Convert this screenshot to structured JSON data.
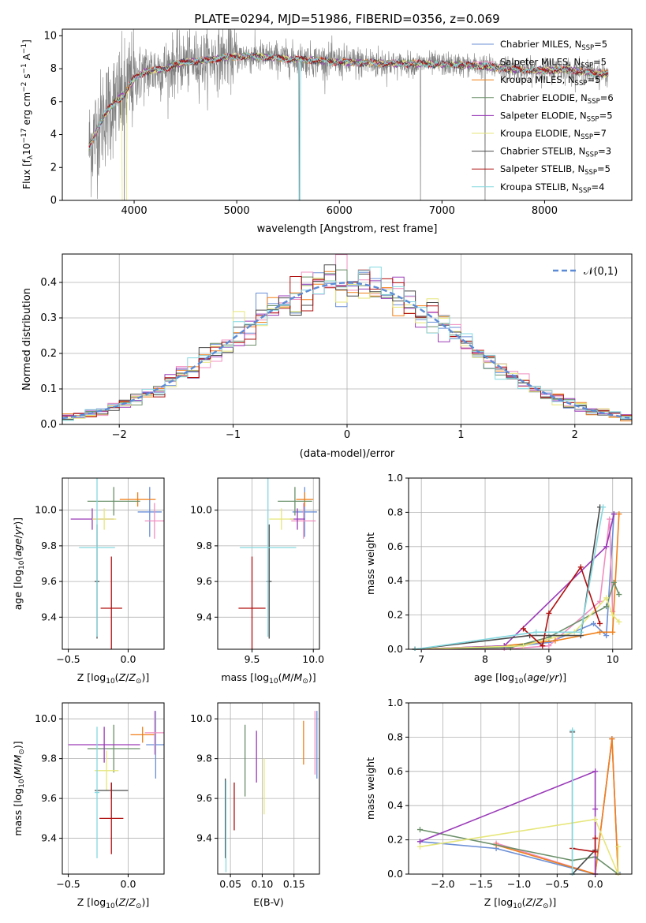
{
  "title": "PLATE=0294, MJD=51986, FIBERID=0356, z=0.069",
  "series_colors": [
    "#6b8fd6",
    "#f08fc0",
    "#f07f17",
    "#6a8f69",
    "#9a3ab8",
    "#e6e67a",
    "#4a4a4a",
    "#b01010",
    "#84d8e0"
  ],
  "chart_data": [
    {
      "id": "spectrum",
      "type": "line",
      "xlabel": "wavelength [Angstrom, rest frame]",
      "ylabel": "Flux [f_λ 10^-17 erg cm^-2 s^-1 A^-1]",
      "xlim": [
        3300,
        8850
      ],
      "ylim": [
        0,
        10.4
      ],
      "xticks": [
        "4000",
        "5000",
        "6000",
        "7000",
        "8000"
      ],
      "yticks": [
        "0",
        "2",
        "4",
        "6",
        "8",
        "10"
      ],
      "legend_position": "right",
      "legend": [
        {
          "model": "Chabrier MILES, N",
          "sub": "SSP",
          "n": "=5"
        },
        {
          "model": "Salpeter MILES, N",
          "sub": "SSP",
          "n": "=5"
        },
        {
          "model": "Kroupa MILES, N",
          "sub": "SSP",
          "n": "=5"
        },
        {
          "model": "Chabrier ELODIE, N",
          "sub": "SSP",
          "n": "=6"
        },
        {
          "model": "Salpeter ELODIE, N",
          "sub": "SSP",
          "n": "=5"
        },
        {
          "model": "Kroupa ELODIE, N",
          "sub": "SSP",
          "n": "=7"
        },
        {
          "model": "Chabrier STELIB, N",
          "sub": "SSP",
          "n": "=3"
        },
        {
          "model": "Salpeter STELIB, N",
          "sub": "SSP",
          "n": "=5"
        },
        {
          "model": "Kroupa STELIB, N",
          "sub": "SSP",
          "n": "=4"
        }
      ],
      "model_knots_x": [
        3560,
        3620,
        3700,
        3800,
        3900,
        3950,
        4000,
        4100,
        4200,
        4300,
        4400,
        4500,
        4700,
        4900,
        5100,
        5300,
        5500,
        5800,
        6000,
        6300,
        6600,
        6900,
        7100,
        7300,
        7500,
        7800,
        8000,
        8200,
        8400,
        8600
      ],
      "model_knots_y": [
        3.2,
        4.0,
        5.1,
        5.9,
        6.4,
        6.9,
        7.4,
        7.8,
        7.9,
        8.0,
        8.25,
        8.4,
        8.5,
        8.7,
        8.75,
        8.7,
        8.6,
        8.5,
        8.4,
        8.35,
        8.3,
        8.3,
        8.25,
        8.2,
        8.1,
        7.9,
        7.9,
        7.95,
        7.8,
        7.7
      ],
      "data_range_x": [
        3560,
        8620
      ],
      "spikes": [
        {
          "x": 3905,
          "y": 0
        },
        {
          "x": 5610,
          "y": 0
        },
        {
          "x": 6790,
          "y": 0
        },
        {
          "x": 7420,
          "y": 0
        }
      ]
    },
    {
      "id": "residuals",
      "type": "histogram",
      "xlabel": "(data-model)/error",
      "ylabel": "Normed distribution",
      "xlim": [
        -2.5,
        2.5
      ],
      "ylim": [
        0,
        0.48
      ],
      "xticks": [
        "−2",
        "−1",
        "0",
        "1",
        "2"
      ],
      "yticks": [
        "0.0",
        "0.1",
        "0.2",
        "0.3",
        "0.4"
      ],
      "bin_width": 0.1,
      "legend": "𝒩(0,1)",
      "legend_position": "upper right",
      "reference": {
        "name": "N(0,1)",
        "mean": 0,
        "sigma": 1
      }
    },
    {
      "id": "age_vs_Z",
      "type": "errorbar",
      "xlabel_main": "Z [log",
      "xlabel_sub": "10",
      "xlabel_rest": "(Z/Z",
      "xlabel_sun": "⊙",
      "xlabel_end": ")]",
      "ylabel": "age  [log10(age/yr)]",
      "xlim": [
        -0.55,
        0.3
      ],
      "ylim": [
        9.22,
        10.18
      ],
      "xticks": [
        {
          "v": -0.5,
          "t": "−0.5"
        },
        {
          "v": 0.0,
          "t": "0.0"
        }
      ],
      "yticks": [
        {
          "v": 9.4,
          "t": "9.4"
        },
        {
          "v": 9.6,
          "t": "9.6"
        },
        {
          "v": 9.8,
          "t": "9.8"
        },
        {
          "v": 10.0,
          "t": "10.0"
        }
      ],
      "points": [
        {
          "x": 0.18,
          "y": 9.99,
          "xe": 0.1,
          "ye": 0.14
        },
        {
          "x": 0.22,
          "y": 9.94,
          "xe": 0.08,
          "ye": 0.1
        },
        {
          "x": 0.08,
          "y": 10.06,
          "xe": 0.15,
          "ye": 0.04
        },
        {
          "x": -0.12,
          "y": 10.05,
          "xe": 0.22,
          "ye": 0.08
        },
        {
          "x": -0.3,
          "y": 9.95,
          "xe": 0.18,
          "ye": 0.06
        },
        {
          "x": -0.2,
          "y": 9.95,
          "xe": 0.1,
          "ye": 0.06
        },
        {
          "x": -0.26,
          "y": 9.6,
          "xe": 0.02,
          "ye": 0.32
        },
        {
          "x": -0.14,
          "y": 9.45,
          "xe": 0.09,
          "ye": 0.29
        },
        {
          "x": -0.26,
          "y": 9.79,
          "xe": 0.15,
          "ye": 0.5
        }
      ]
    },
    {
      "id": "age_vs_mass",
      "type": "errorbar",
      "xlabel": "mass [log10(M/M⊙)]",
      "xlim": [
        9.22,
        10.05
      ],
      "ylim": [
        9.22,
        10.18
      ],
      "xticks": [
        {
          "v": 9.5,
          "t": "9.5"
        },
        {
          "v": 10.0,
          "t": "10.0"
        }
      ],
      "yticks": [
        {
          "v": 9.4,
          "t": "9.4"
        },
        {
          "v": 9.6,
          "t": "9.6"
        },
        {
          "v": 9.8,
          "t": "9.8"
        },
        {
          "v": 10.0,
          "t": "10.0"
        }
      ],
      "points": [
        {
          "x": 9.93,
          "y": 9.99,
          "xe": 0.1,
          "ye": 0.14
        },
        {
          "x": 9.92,
          "y": 9.94,
          "xe": 0.1,
          "ye": 0.1
        },
        {
          "x": 9.93,
          "y": 10.06,
          "xe": 0.07,
          "ye": 0.04
        },
        {
          "x": 9.85,
          "y": 10.05,
          "xe": 0.14,
          "ye": 0.08
        },
        {
          "x": 9.87,
          "y": 9.95,
          "xe": 0.06,
          "ye": 0.06
        },
        {
          "x": 9.74,
          "y": 9.95,
          "xe": 0.1,
          "ye": 0.06
        },
        {
          "x": 9.64,
          "y": 9.6,
          "xe": 0.02,
          "ye": 0.32
        },
        {
          "x": 9.5,
          "y": 9.45,
          "xe": 0.11,
          "ye": 0.29
        },
        {
          "x": 9.63,
          "y": 9.79,
          "xe": 0.23,
          "ye": 0.5
        }
      ]
    },
    {
      "id": "mass_weight_vs_age",
      "type": "line",
      "xlabel": "age  [log10(age/yr)]",
      "ylabel": "mass weight",
      "xlim": [
        6.8,
        10.3
      ],
      "ylim": [
        0,
        1
      ],
      "xticks": [
        {
          "v": 7,
          "t": "7"
        },
        {
          "v": 8,
          "t": "8"
        },
        {
          "v": 9,
          "t": "9"
        },
        {
          "v": 10,
          "t": "10"
        }
      ],
      "yticks": [
        {
          "v": 0,
          "t": "0.0"
        },
        {
          "v": 0.2,
          "t": "0.2"
        },
        {
          "v": 0.4,
          "t": "0.4"
        },
        {
          "v": 0.6,
          "t": "0.6"
        },
        {
          "v": 0.8,
          "t": "0.8"
        },
        {
          "v": 1,
          "t": "1.0"
        }
      ],
      "series": [
        {
          "x": [
            6.9,
            8.3,
            9.0,
            9.7,
            9.9,
            10.02
          ],
          "y": [
            0.0,
            0.01,
            0.04,
            0.15,
            0.08,
            0.79
          ]
        },
        {
          "x": [
            6.9,
            8.3,
            9.0,
            9.8,
            9.95,
            10.0
          ],
          "y": [
            0.0,
            0.0,
            0.02,
            0.28,
            0.76,
            0.22
          ]
        },
        {
          "x": [
            6.9,
            8.3,
            9.1,
            9.8,
            10.0,
            10.1
          ],
          "y": [
            0.0,
            0.02,
            0.05,
            0.1,
            0.1,
            0.79
          ]
        },
        {
          "x": [
            6.9,
            8.4,
            9.0,
            9.9,
            10.02,
            10.1
          ],
          "y": [
            0.0,
            0.01,
            0.07,
            0.25,
            0.39,
            0.32
          ]
        },
        {
          "x": [
            6.9,
            8.3,
            9.9,
            10.02
          ],
          "y": [
            0.0,
            0.02,
            0.6,
            0.79
          ]
        },
        {
          "x": [
            6.9,
            8.6,
            9.4,
            9.9,
            10.0,
            10.1
          ],
          "y": [
            0.0,
            0.02,
            0.1,
            0.3,
            0.2,
            0.16
          ]
        },
        {
          "x": [
            6.9,
            8.7,
            9.5,
            9.8
          ],
          "y": [
            0.0,
            0.08,
            0.08,
            0.83
          ]
        },
        {
          "x": [
            8.6,
            8.9,
            9.0,
            9.5,
            9.8
          ],
          "y": [
            0.12,
            0.02,
            0.21,
            0.48,
            0.15
          ]
        },
        {
          "x": [
            6.9,
            8.8,
            9.5,
            9.85
          ],
          "y": [
            0.0,
            0.1,
            0.1,
            0.83
          ]
        }
      ]
    },
    {
      "id": "mass_vs_Z",
      "type": "errorbar",
      "xlabel": "Z [log10(Z/Z⊙)]",
      "ylabel": "mass [log10(M/M⊙)]",
      "xlim": [
        -0.55,
        0.3
      ],
      "ylim": [
        9.22,
        10.08
      ],
      "xticks": [
        {
          "v": -0.5,
          "t": "−0.5"
        },
        {
          "v": 0.0,
          "t": "0.0"
        }
      ],
      "yticks": [
        {
          "v": 9.4,
          "t": "9.4"
        },
        {
          "v": 9.6,
          "t": "9.6"
        },
        {
          "v": 9.8,
          "t": "9.8"
        },
        {
          "v": 10.0,
          "t": "10.0"
        }
      ],
      "points": [
        {
          "x": 0.23,
          "y": 9.87,
          "xe": 0.08,
          "ye": 0.17
        },
        {
          "x": 0.22,
          "y": 9.93,
          "xe": 0.08,
          "ye": 0.11
        },
        {
          "x": 0.12,
          "y": 9.92,
          "xe": 0.1,
          "ye": 0.04
        },
        {
          "x": -0.12,
          "y": 9.85,
          "xe": 0.22,
          "ye": 0.12
        },
        {
          "x": -0.2,
          "y": 9.87,
          "xe": 0.3,
          "ye": 0.09
        },
        {
          "x": -0.18,
          "y": 9.74,
          "xe": 0.1,
          "ye": 0.1
        },
        {
          "x": -0.14,
          "y": 9.64,
          "xe": 0.14,
          "ye": 0.04
        },
        {
          "x": -0.14,
          "y": 9.5,
          "xe": 0.1,
          "ye": 0.18
        },
        {
          "x": -0.26,
          "y": 9.63,
          "xe": 0.02,
          "ye": 0.33
        }
      ]
    },
    {
      "id": "mass_vs_EBV",
      "type": "errorbar",
      "xlabel": "E(B-V)",
      "xlim": [
        0.03,
        0.19
      ],
      "ylim": [
        9.22,
        10.08
      ],
      "xticks": [
        {
          "v": 0.05,
          "t": "0.05"
        },
        {
          "v": 0.1,
          "t": "0.10"
        },
        {
          "v": 0.15,
          "t": "0.15"
        }
      ],
      "yticks": [
        {
          "v": 9.4,
          "t": "9.4"
        },
        {
          "v": 9.6,
          "t": "9.6"
        },
        {
          "v": 9.8,
          "t": "9.8"
        },
        {
          "v": 10.0,
          "t": "10.0"
        }
      ],
      "points": [
        {
          "x": 0.186,
          "y": 9.87,
          "xe": 0,
          "ye": 0.17
        },
        {
          "x": 0.183,
          "y": 9.88,
          "xe": 0,
          "ye": 0.16
        },
        {
          "x": 0.165,
          "y": 9.88,
          "xe": 0,
          "ye": 0.11
        },
        {
          "x": 0.073,
          "y": 9.79,
          "xe": 0,
          "ye": 0.18
        },
        {
          "x": 0.091,
          "y": 9.81,
          "xe": 0,
          "ye": 0.13
        },
        {
          "x": 0.103,
          "y": 9.66,
          "xe": 0,
          "ye": 0.14
        },
        {
          "x": 0.042,
          "y": 9.5,
          "xe": 0,
          "ye": 0.2
        },
        {
          "x": 0.056,
          "y": 9.56,
          "xe": 0,
          "ye": 0.12
        },
        {
          "x": 0.043,
          "y": 9.46,
          "xe": 0,
          "ye": 0.23
        }
      ]
    },
    {
      "id": "mass_weight_vs_Z",
      "type": "line",
      "xlabel": "Z [log10(Z/Z⊙)]",
      "ylabel": "mass weight",
      "xlim": [
        -2.45,
        0.48
      ],
      "ylim": [
        0,
        1
      ],
      "xticks": [
        {
          "v": -2.0,
          "t": "−2.0"
        },
        {
          "v": -1.5,
          "t": "−1.5"
        },
        {
          "v": -1.0,
          "t": "−1.0"
        },
        {
          "v": -0.5,
          "t": "−0.5"
        },
        {
          "v": 0.0,
          "t": "0.0"
        }
      ],
      "yticks": [
        {
          "v": 0,
          "t": "0.0"
        },
        {
          "v": 0.2,
          "t": "0.2"
        },
        {
          "v": 0.4,
          "t": "0.4"
        },
        {
          "v": 0.6,
          "t": "0.6"
        },
        {
          "v": 0.8,
          "t": "0.8"
        },
        {
          "v": 1,
          "t": "1.0"
        }
      ],
      "series": [
        {
          "x": [
            -2.3,
            -1.3,
            0.0,
            0.22,
            0.3
          ],
          "y": [
            0.19,
            0.15,
            0.0,
            0.79,
            0.01
          ]
        },
        {
          "x": [
            -1.3,
            0.0,
            0.22,
            0.3
          ],
          "y": [
            0.18,
            0.0,
            0.79,
            0.0
          ]
        },
        {
          "x": [
            -1.3,
            0.0,
            0.22,
            0.3
          ],
          "y": [
            0.17,
            0.0,
            0.79,
            0.0
          ]
        },
        {
          "x": [
            -2.3,
            -0.3,
            0.0,
            0.3
          ],
          "y": [
            0.26,
            0.08,
            0.1,
            0.0
          ]
        },
        {
          "x": [
            -2.3,
            0.0,
            0.0,
            0.0
          ],
          "y": [
            0.19,
            0.6,
            0.38,
            0.0
          ]
        },
        {
          "x": [
            -2.3,
            0.0,
            0.3,
            0.3
          ],
          "y": [
            0.16,
            0.32,
            0.0,
            0.16
          ]
        },
        {
          "x": [
            -0.3,
            -0.3,
            0.0
          ],
          "y": [
            0.83,
            0.0,
            0.14
          ]
        },
        {
          "x": [
            -0.3,
            0.0,
            0.0
          ],
          "y": [
            0.15,
            0.13,
            0.21
          ]
        },
        {
          "x": [
            -0.3,
            -0.3
          ],
          "y": [
            0.84,
            0.0
          ]
        }
      ]
    }
  ]
}
